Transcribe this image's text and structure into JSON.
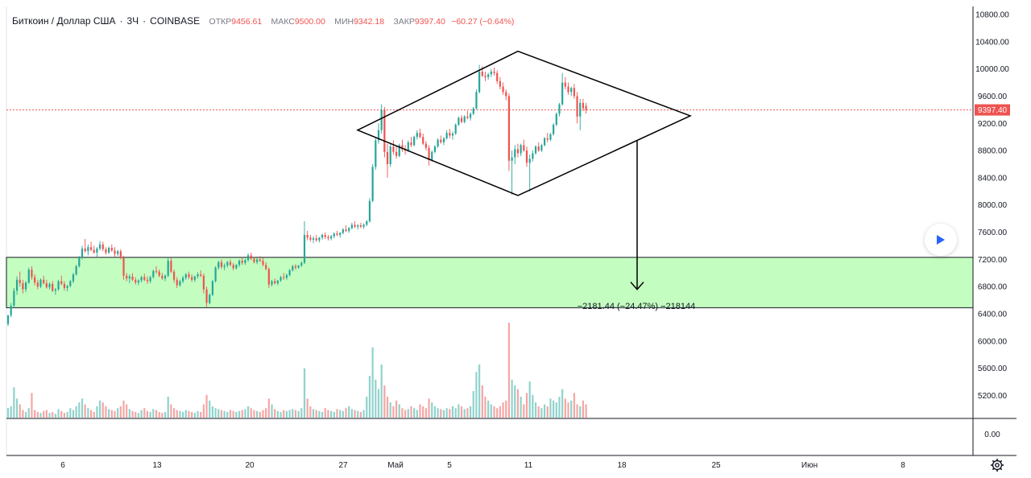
{
  "header": {
    "symbol": "Биткоин / Доллар США",
    "interval": "3Ч",
    "exchange": "COINBASE",
    "open_label": "ОТКР",
    "open_value": "9456.61",
    "high_label": "МАКС",
    "high_value": "9500.00",
    "low_label": "МИН",
    "low_value": "9342.18",
    "close_label": "ЗАКР",
    "close_value": "9397.40",
    "change": "−60.27 (−0.64%)"
  },
  "price_axis": {
    "ticks": [
      "10800.00",
      "10400.00",
      "10000.00",
      "9600.00",
      "9200.00",
      "8800.00",
      "8400.00",
      "8000.00",
      "7600.00",
      "7200.00",
      "6800.00",
      "6400.00",
      "6000.00",
      "5600.00",
      "5200.00"
    ],
    "last_price_label": "9397.40"
  },
  "volume_axis": {
    "zero_label": "0.00"
  },
  "time_axis": {
    "labels": [
      "6",
      "13",
      "20",
      "27",
      "Май",
      "5",
      "11",
      "18",
      "25",
      "Июн",
      "8"
    ]
  },
  "measure_label": "−2181.44 (−24.47%) −218144",
  "colors": {
    "up": "#26a69a",
    "down": "#ef5350",
    "volume_up": "#8fd3cc",
    "volume_down": "#f5a6a4",
    "zone_fill": "#c3fdc0",
    "last_price_line": "#ef5350",
    "pattern_line": "#000000",
    "measure_arrow": "#000000"
  },
  "icons": {
    "play": "play-icon",
    "settings": "gear-icon"
  },
  "chart_data": {
    "type": "candlestick",
    "ylim": [
      6200,
      10900
    ],
    "last_price": 9397.4,
    "zone": {
      "top": 7230,
      "bottom": 6490
    },
    "diamond": [
      [
        9100,
        10260
      ],
      [
        10260,
        9310
      ],
      [
        9310,
        8140
      ],
      [
        8140,
        9100
      ]
    ],
    "measure": {
      "from": 8940,
      "to": 6760
    },
    "candles": [
      [
        6250,
        6380,
        6220,
        6380
      ],
      [
        6380,
        6560,
        6350,
        6520
      ],
      [
        6520,
        6780,
        6490,
        6740
      ],
      [
        6740,
        6950,
        6680,
        6900
      ],
      [
        6900,
        7020,
        6800,
        6850
      ],
      [
        6850,
        6900,
        6700,
        6760
      ],
      [
        6760,
        6880,
        6720,
        6860
      ],
      [
        6860,
        7080,
        6840,
        7050
      ],
      [
        7050,
        7100,
        6900,
        6940
      ],
      [
        6940,
        6980,
        6820,
        6860
      ],
      [
        6860,
        6900,
        6760,
        6800
      ],
      [
        6800,
        6920,
        6780,
        6900
      ],
      [
        6900,
        6960,
        6830,
        6850
      ],
      [
        6850,
        6900,
        6770,
        6790
      ],
      [
        6790,
        6860,
        6760,
        6840
      ],
      [
        6840,
        6880,
        6720,
        6740
      ],
      [
        6740,
        6780,
        6680,
        6760
      ],
      [
        6760,
        6900,
        6740,
        6880
      ],
      [
        6880,
        6960,
        6820,
        6840
      ],
      [
        6840,
        6880,
        6740,
        6780
      ],
      [
        6780,
        6830,
        6730,
        6810
      ],
      [
        6810,
        6900,
        6790,
        6880
      ],
      [
        6880,
        7000,
        6850,
        6980
      ],
      [
        6980,
        7120,
        6960,
        7100
      ],
      [
        7100,
        7250,
        7080,
        7230
      ],
      [
        7230,
        7400,
        7200,
        7360
      ],
      [
        7360,
        7500,
        7300,
        7320
      ],
      [
        7320,
        7420,
        7260,
        7380
      ],
      [
        7380,
        7460,
        7320,
        7340
      ],
      [
        7340,
        7400,
        7280,
        7300
      ],
      [
        7300,
        7380,
        7240,
        7360
      ],
      [
        7360,
        7470,
        7330,
        7420
      ],
      [
        7420,
        7460,
        7320,
        7350
      ],
      [
        7350,
        7380,
        7270,
        7300
      ],
      [
        7300,
        7390,
        7280,
        7370
      ],
      [
        7370,
        7420,
        7310,
        7330
      ],
      [
        7330,
        7380,
        7240,
        7280
      ],
      [
        7280,
        7340,
        7250,
        7320
      ],
      [
        7320,
        7350,
        7200,
        7220
      ],
      [
        7220,
        7250,
        6900,
        6960
      ],
      [
        6960,
        7000,
        6880,
        6920
      ],
      [
        6920,
        6980,
        6850,
        6950
      ],
      [
        6950,
        7000,
        6880,
        6900
      ],
      [
        6900,
        6940,
        6830,
        6860
      ],
      [
        6860,
        6910,
        6820,
        6890
      ],
      [
        6890,
        6960,
        6860,
        6940
      ],
      [
        6940,
        6990,
        6880,
        6900
      ],
      [
        6900,
        6950,
        6840,
        6880
      ],
      [
        6880,
        6960,
        6850,
        6940
      ],
      [
        6940,
        7050,
        6920,
        7030
      ],
      [
        7030,
        7100,
        6990,
        7020
      ],
      [
        7020,
        7050,
        6940,
        6960
      ],
      [
        6960,
        7000,
        6900,
        6920
      ],
      [
        6920,
        6980,
        6880,
        6960
      ],
      [
        6960,
        7230,
        6940,
        7180
      ],
      [
        7180,
        7220,
        7000,
        7020
      ],
      [
        7020,
        7050,
        6860,
        6900
      ],
      [
        6900,
        6940,
        6780,
        6820
      ],
      [
        6820,
        6900,
        6800,
        6880
      ],
      [
        6880,
        6960,
        6850,
        6930
      ],
      [
        6930,
        7000,
        6900,
        6980
      ],
      [
        6980,
        7020,
        6910,
        6940
      ],
      [
        6940,
        6980,
        6870,
        6900
      ],
      [
        6900,
        6960,
        6870,
        6950
      ],
      [
        6950,
        7010,
        6920,
        6980
      ],
      [
        6980,
        7040,
        6940,
        6960
      ],
      [
        6960,
        6990,
        6700,
        6760
      ],
      [
        6760,
        6800,
        6500,
        6560
      ],
      [
        6560,
        6700,
        6540,
        6680
      ],
      [
        6680,
        6900,
        6660,
        6880
      ],
      [
        6880,
        7100,
        6860,
        7080
      ],
      [
        7080,
        7180,
        7050,
        7160
      ],
      [
        7160,
        7200,
        7060,
        7090
      ],
      [
        7090,
        7140,
        7040,
        7110
      ],
      [
        7110,
        7180,
        7080,
        7160
      ],
      [
        7160,
        7200,
        7100,
        7120
      ],
      [
        7120,
        7150,
        7040,
        7070
      ],
      [
        7070,
        7130,
        7050,
        7120
      ],
      [
        7120,
        7200,
        7090,
        7180
      ],
      [
        7180,
        7230,
        7120,
        7150
      ],
      [
        7150,
        7210,
        7120,
        7190
      ],
      [
        7190,
        7290,
        7170,
        7260
      ],
      [
        7260,
        7300,
        7190,
        7210
      ],
      [
        7210,
        7240,
        7140,
        7160
      ],
      [
        7160,
        7220,
        7130,
        7200
      ],
      [
        7200,
        7250,
        7160,
        7180
      ],
      [
        7180,
        7220,
        7100,
        7120
      ],
      [
        7120,
        7160,
        7040,
        7060
      ],
      [
        7060,
        7080,
        6780,
        6830
      ],
      [
        6830,
        6900,
        6800,
        6880
      ],
      [
        6880,
        6920,
        6830,
        6850
      ],
      [
        6850,
        6900,
        6820,
        6890
      ],
      [
        6890,
        6960,
        6870,
        6940
      ],
      [
        6940,
        7000,
        6900,
        6930
      ],
      [
        6930,
        6990,
        6900,
        6970
      ],
      [
        6970,
        7060,
        6950,
        7040
      ],
      [
        7040,
        7120,
        7020,
        7100
      ],
      [
        7100,
        7130,
        7050,
        7080
      ],
      [
        7080,
        7120,
        7060,
        7110
      ],
      [
        7110,
        7170,
        7090,
        7150
      ],
      [
        7150,
        7760,
        7130,
        7560
      ],
      [
        7560,
        7620,
        7480,
        7520
      ],
      [
        7520,
        7560,
        7460,
        7490
      ],
      [
        7490,
        7540,
        7440,
        7510
      ],
      [
        7510,
        7560,
        7460,
        7480
      ],
      [
        7480,
        7530,
        7450,
        7520
      ],
      [
        7520,
        7580,
        7490,
        7560
      ],
      [
        7560,
        7600,
        7500,
        7530
      ],
      [
        7530,
        7560,
        7480,
        7510
      ],
      [
        7510,
        7560,
        7480,
        7540
      ],
      [
        7540,
        7600,
        7510,
        7580
      ],
      [
        7580,
        7620,
        7540,
        7560
      ],
      [
        7560,
        7600,
        7520,
        7590
      ],
      [
        7590,
        7660,
        7570,
        7640
      ],
      [
        7640,
        7700,
        7600,
        7620
      ],
      [
        7620,
        7680,
        7590,
        7660
      ],
      [
        7660,
        7740,
        7640,
        7710
      ],
      [
        7710,
        7760,
        7660,
        7680
      ],
      [
        7680,
        7720,
        7640,
        7700
      ],
      [
        7700,
        7740,
        7660,
        7680
      ],
      [
        7680,
        7730,
        7650,
        7710
      ],
      [
        7710,
        7780,
        7690,
        7760
      ],
      [
        7760,
        8100,
        7740,
        8060
      ],
      [
        8060,
        8600,
        8040,
        8560
      ],
      [
        8560,
        9000,
        8520,
        8950
      ],
      [
        8950,
        9200,
        8900,
        9100
      ],
      [
        9100,
        9480,
        9050,
        9400
      ],
      [
        9400,
        9440,
        8700,
        8780
      ],
      [
        8780,
        8900,
        8400,
        8600
      ],
      [
        8600,
        8900,
        8560,
        8860
      ],
      [
        8860,
        8950,
        8740,
        8780
      ],
      [
        8780,
        8860,
        8680,
        8720
      ],
      [
        8720,
        8900,
        8700,
        8880
      ],
      [
        8880,
        8960,
        8780,
        8820
      ],
      [
        8820,
        8880,
        8740,
        8800
      ],
      [
        8800,
        8950,
        8780,
        8920
      ],
      [
        8920,
        9000,
        8850,
        8880
      ],
      [
        8880,
        9020,
        8860,
        9000
      ],
      [
        9000,
        9100,
        8960,
        9060
      ],
      [
        9060,
        9120,
        8980,
        9000
      ],
      [
        9000,
        9050,
        8880,
        8900
      ],
      [
        8900,
        8940,
        8800,
        8840
      ],
      [
        8840,
        8880,
        8580,
        8660
      ],
      [
        8660,
        8800,
        8640,
        8780
      ],
      [
        8780,
        8880,
        8760,
        8860
      ],
      [
        8860,
        8980,
        8840,
        8960
      ],
      [
        8960,
        9020,
        8900,
        8920
      ],
      [
        8920,
        9000,
        8880,
        8980
      ],
      [
        8980,
        9100,
        8960,
        9060
      ],
      [
        9060,
        9120,
        8980,
        9020
      ],
      [
        9020,
        9080,
        8960,
        9050
      ],
      [
        9050,
        9200,
        9030,
        9180
      ],
      [
        9180,
        9300,
        9160,
        9280
      ],
      [
        9280,
        9320,
        9200,
        9220
      ],
      [
        9220,
        9320,
        9200,
        9300
      ],
      [
        9300,
        9380,
        9260,
        9280
      ],
      [
        9280,
        9360,
        9240,
        9340
      ],
      [
        9340,
        9440,
        9320,
        9420
      ],
      [
        9420,
        9700,
        9400,
        9660
      ],
      [
        9660,
        10060,
        9640,
        9960
      ],
      [
        9960,
        10040,
        9880,
        9900
      ],
      [
        9900,
        9960,
        9820,
        9880
      ],
      [
        9880,
        9940,
        9840,
        9920
      ],
      [
        9920,
        10000,
        9880,
        9960
      ],
      [
        9960,
        10020,
        9900,
        9940
      ],
      [
        9940,
        9980,
        9780,
        9820
      ],
      [
        9820,
        9880,
        9700,
        9740
      ],
      [
        9740,
        9800,
        9620,
        9660
      ],
      [
        9660,
        9700,
        9540,
        9600
      ],
      [
        9600,
        9640,
        8500,
        8650
      ],
      [
        8650,
        8800,
        8150,
        8700
      ],
      [
        8700,
        8880,
        8600,
        8820
      ],
      [
        8820,
        8900,
        8700,
        8760
      ],
      [
        8760,
        8900,
        8720,
        8880
      ],
      [
        8880,
        8960,
        8780,
        8800
      ],
      [
        8800,
        8860,
        8560,
        8620
      ],
      [
        8620,
        8740,
        8200,
        8680
      ],
      [
        8680,
        8800,
        8640,
        8760
      ],
      [
        8760,
        8880,
        8740,
        8860
      ],
      [
        8860,
        8920,
        8780,
        8800
      ],
      [
        8800,
        8900,
        8780,
        8880
      ],
      [
        8880,
        9000,
        8860,
        8980
      ],
      [
        8980,
        9060,
        8920,
        8960
      ],
      [
        8960,
        9060,
        8940,
        9040
      ],
      [
        9040,
        9200,
        9020,
        9180
      ],
      [
        9180,
        9360,
        9160,
        9340
      ],
      [
        9340,
        9500,
        9300,
        9480
      ],
      [
        9480,
        9940,
        9460,
        9800
      ],
      [
        9800,
        9880,
        9700,
        9740
      ],
      [
        9740,
        9800,
        9620,
        9660
      ],
      [
        9660,
        9740,
        9600,
        9720
      ],
      [
        9720,
        9780,
        9560,
        9600
      ],
      [
        9600,
        9660,
        9200,
        9300
      ],
      [
        9300,
        9560,
        9100,
        9500
      ],
      [
        9500,
        9560,
        9380,
        9420
      ],
      [
        9456.61,
        9500,
        9342.18,
        9397.4
      ]
    ],
    "volumes": [
      0.1,
      0.12,
      0.32,
      0.2,
      0.14,
      0.08,
      0.06,
      0.1,
      0.26,
      0.08,
      0.06,
      0.05,
      0.07,
      0.08,
      0.05,
      0.06,
      0.04,
      0.09,
      0.07,
      0.05,
      0.06,
      0.1,
      0.08,
      0.12,
      0.16,
      0.2,
      0.14,
      0.1,
      0.08,
      0.06,
      0.12,
      0.18,
      0.16,
      0.12,
      0.09,
      0.08,
      0.07,
      0.1,
      0.12,
      0.18,
      0.14,
      0.09,
      0.07,
      0.06,
      0.05,
      0.08,
      0.1,
      0.07,
      0.06,
      0.09,
      0.08,
      0.06,
      0.05,
      0.06,
      0.22,
      0.14,
      0.1,
      0.08,
      0.07,
      0.06,
      0.08,
      0.07,
      0.06,
      0.05,
      0.07,
      0.06,
      0.14,
      0.24,
      0.18,
      0.12,
      0.1,
      0.09,
      0.08,
      0.07,
      0.06,
      0.08,
      0.07,
      0.06,
      0.07,
      0.08,
      0.09,
      0.12,
      0.1,
      0.08,
      0.07,
      0.06,
      0.08,
      0.1,
      0.2,
      0.14,
      0.09,
      0.07,
      0.06,
      0.08,
      0.07,
      0.08,
      0.09,
      0.08,
      0.07,
      0.1,
      0.52,
      0.2,
      0.12,
      0.09,
      0.08,
      0.07,
      0.06,
      0.1,
      0.08,
      0.07,
      0.06,
      0.09,
      0.08,
      0.07,
      0.1,
      0.12,
      0.09,
      0.08,
      0.07,
      0.06,
      0.08,
      0.22,
      0.44,
      0.74,
      0.4,
      0.3,
      0.56,
      0.34,
      0.22,
      0.16,
      0.12,
      0.18,
      0.14,
      0.1,
      0.08,
      0.09,
      0.12,
      0.1,
      0.08,
      0.14,
      0.12,
      0.1,
      0.2,
      0.16,
      0.12,
      0.1,
      0.09,
      0.08,
      0.1,
      0.09,
      0.12,
      0.1,
      0.14,
      0.12,
      0.09,
      0.1,
      0.12,
      0.28,
      0.48,
      0.56,
      0.34,
      0.22,
      0.18,
      0.14,
      0.12,
      0.1,
      0.12,
      0.16,
      0.18,
      1.0,
      0.4,
      0.34,
      0.3,
      0.22,
      0.14,
      0.26,
      0.38,
      0.24,
      0.16,
      0.12,
      0.1,
      0.14,
      0.12,
      0.2,
      0.18,
      0.16,
      0.22,
      0.3,
      0.2,
      0.16,
      0.18,
      0.26,
      0.14,
      0.12,
      0.18,
      0.14,
      0.08
    ]
  }
}
